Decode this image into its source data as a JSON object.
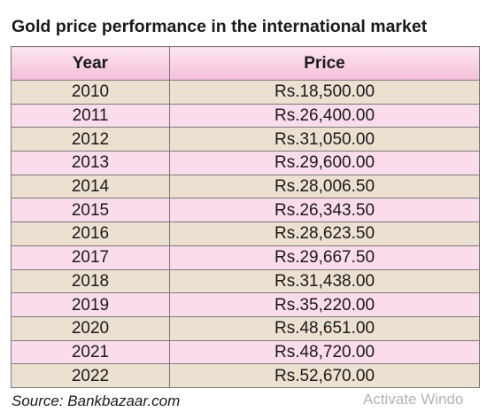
{
  "title": "Gold price performance in the international market",
  "table": {
    "headers": [
      "Year",
      "Price"
    ],
    "rows": [
      {
        "year": "2010",
        "price": "Rs.18,500.00"
      },
      {
        "year": "2011",
        "price": "Rs.26,400.00"
      },
      {
        "year": "2012",
        "price": "Rs.31,050.00"
      },
      {
        "year": "2013",
        "price": "Rs.29,600.00"
      },
      {
        "year": "2014",
        "price": "Rs.28,006.50"
      },
      {
        "year": "2015",
        "price": "Rs.26,343.50"
      },
      {
        "year": "2016",
        "price": "Rs.28,623.50"
      },
      {
        "year": "2017",
        "price": "Rs.29,667.50"
      },
      {
        "year": "2018",
        "price": "Rs.31,438.00"
      },
      {
        "year": "2019",
        "price": "Rs.35,220.00"
      },
      {
        "year": "2020",
        "price": "Rs.48,651.00"
      },
      {
        "year": "2021",
        "price": "Rs.48,720.00"
      },
      {
        "year": "2022",
        "price": "Rs.52,670.00"
      }
    ]
  },
  "source": "Source:  Bankbazaar.com",
  "watermark": "Activate Windo",
  "colors": {
    "header_bg": "#f5bed9",
    "row_odd_bg": "#ece1d1",
    "row_even_bg": "#fbdcec",
    "border": "#7a7a7a"
  }
}
